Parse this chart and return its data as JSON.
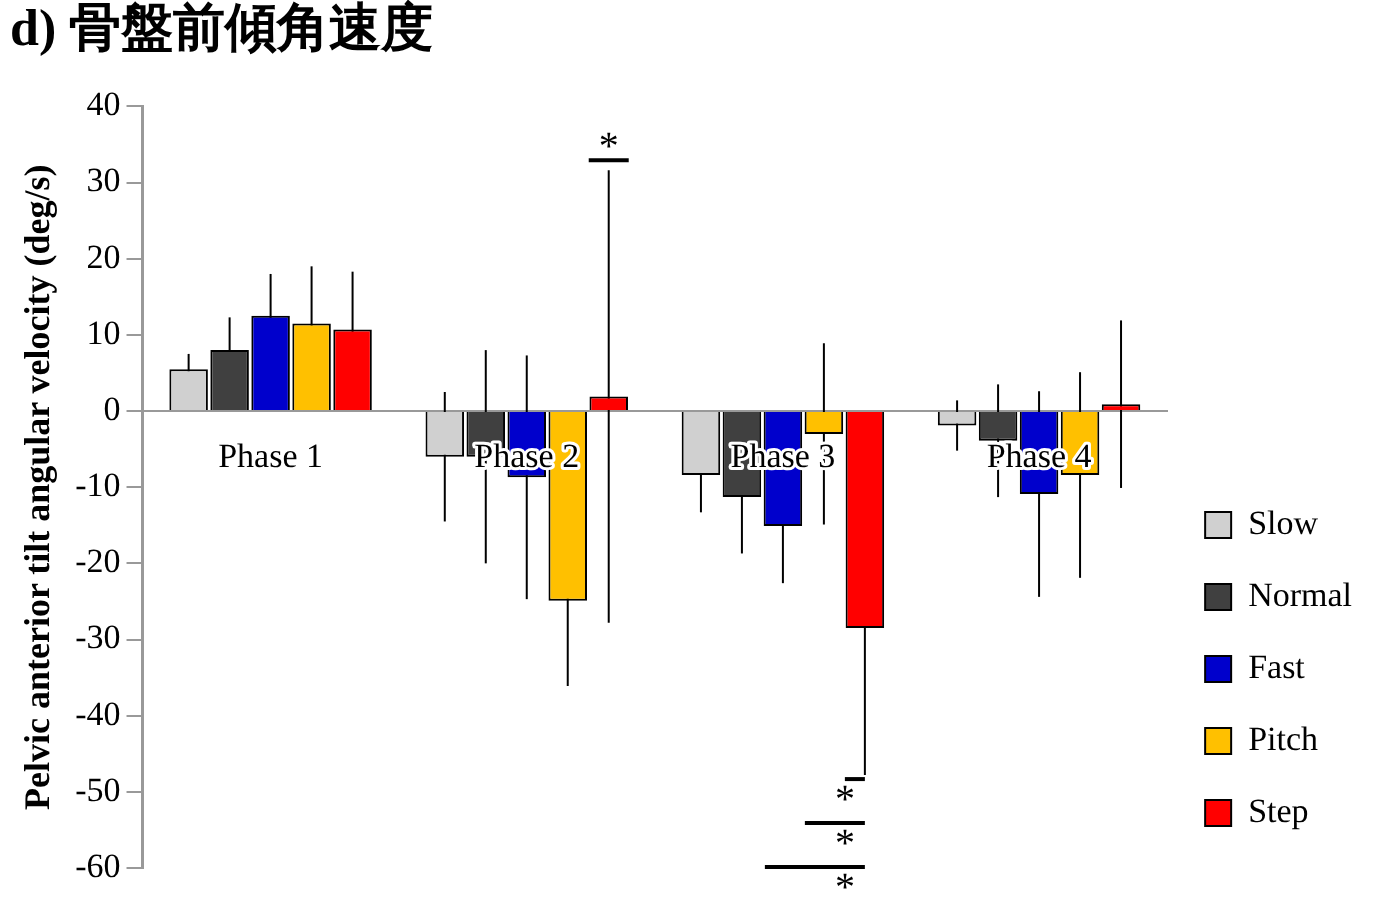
{
  "chart_data": {
    "type": "bar",
    "title": "d) 骨盤前傾角速度",
    "ylabel": "Pelvic anterior tilt angular velocity (deg/s)",
    "categories": [
      "Phase 1",
      "Phase 2",
      "Phase 3",
      "Phase 4"
    ],
    "series": [
      {
        "name": "Slow",
        "color": "#d0d0d0",
        "values": [
          5.5,
          -6,
          -8.4,
          -1.9
        ],
        "errors": [
          2,
          8.5,
          4.9,
          3.3
        ]
      },
      {
        "name": "Normal",
        "color": "#404040",
        "values": [
          8,
          -6,
          -11.3,
          -3.9
        ],
        "errors": [
          4.3,
          14,
          7.4,
          7.4
        ]
      },
      {
        "name": "Fast",
        "color": "#0000cc",
        "values": [
          12.5,
          -8.7,
          -15.1,
          -10.9
        ],
        "errors": [
          5.5,
          16,
          7.5,
          13.5
        ]
      },
      {
        "name": "Pitch",
        "color": "#ffc000",
        "values": [
          11.5,
          -24.9,
          -3,
          -8.4
        ],
        "errors": [
          7.5,
          11.2,
          11.9,
          13.5
        ]
      },
      {
        "name": "Step",
        "color": "#ff0000",
        "values": [
          10.7,
          1.9,
          -28.5,
          0.9
        ],
        "errors": [
          7.6,
          29.7,
          19.3,
          11
        ]
      }
    ],
    "ylim": [
      -60,
      40
    ],
    "yticks": [
      -60,
      -50,
      -40,
      -30,
      -20,
      -10,
      0,
      10,
      20,
      30,
      40
    ],
    "grid": false,
    "legend": "right",
    "annotations": [
      "*",
      "*",
      "*",
      "*"
    ]
  }
}
